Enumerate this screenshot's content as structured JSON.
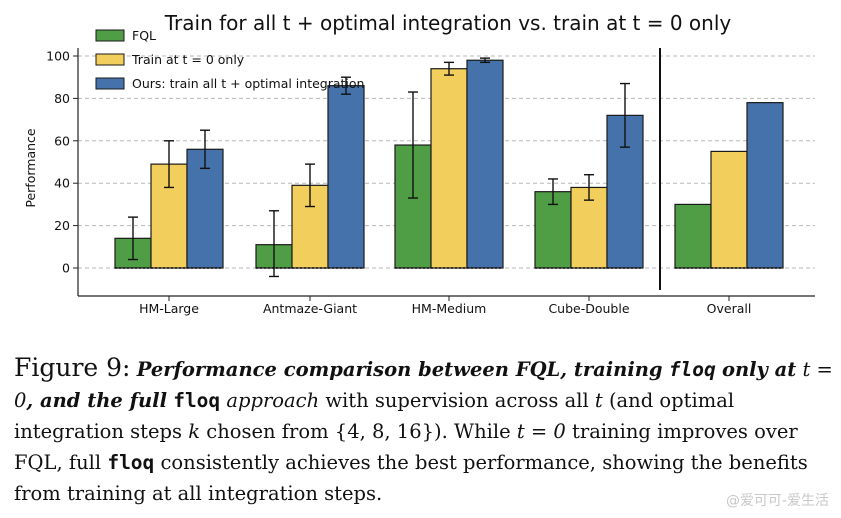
{
  "chart_data": {
    "type": "bar",
    "title": "Train for all t + optimal integration vs. train at t = 0 only",
    "ylabel": "Performance",
    "xlabel": "",
    "ylim": [
      -10,
      105
    ],
    "yticks": [
      0,
      20,
      40,
      60,
      80,
      100
    ],
    "grid": true,
    "legend_position": "top-left",
    "categories": [
      "HM-Large",
      "Antmaze-Giant",
      "HM-Medium",
      "Cube-Double",
      "Overall"
    ],
    "separator_before_last_category": true,
    "series": [
      {
        "name": "FQL",
        "color": "#4f9e45",
        "values": [
          14,
          11,
          58,
          36,
          30
        ],
        "err_low": [
          4,
          -4,
          33,
          30,
          null
        ],
        "err_high": [
          24,
          27,
          83,
          42,
          null
        ]
      },
      {
        "name": "Train at t = 0 only",
        "color": "#f2cf5c",
        "values": [
          49,
          39,
          94,
          38,
          55
        ],
        "err_low": [
          38,
          29,
          91,
          32,
          null
        ],
        "err_high": [
          60,
          49,
          97,
          44,
          null
        ]
      },
      {
        "name": "Ours: train all t + optimal integration",
        "color": "#4672ab",
        "values": [
          56,
          86,
          98,
          72,
          78
        ],
        "err_low": [
          47,
          82,
          97,
          57,
          null
        ],
        "err_high": [
          65,
          90,
          99,
          87,
          null
        ]
      }
    ]
  },
  "caption": {
    "figure_label": "Figure 9",
    "sentence1_a": "Performance comparison between FQL, training",
    "code_floq": "floq",
    "sentence1_b": "only at",
    "math_t0": "t = 0",
    "sentence1_c": ", and the full",
    "sentence1_d": "approach",
    "sentence1_e": "with supervision across all",
    "math_t": "t",
    "sentence1_f": "(and optimal integration steps",
    "math_k": "k",
    "sentence1_g": "chosen from",
    "math_set": "{4, 8, 16}",
    "sentence1_h": "). While",
    "sentence2_a": "training improves over FQL, full",
    "sentence2_b": "consistently achieves the best performance, showing the benefits from training at all integration steps."
  },
  "watermark": "@爱可可-爱生活"
}
